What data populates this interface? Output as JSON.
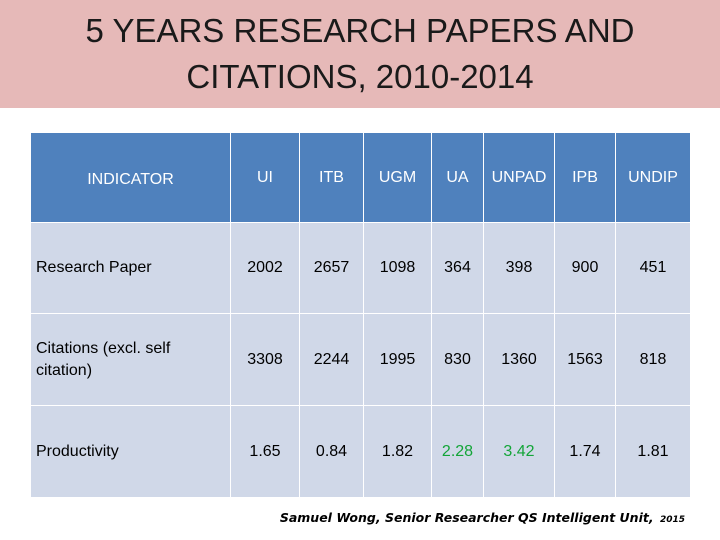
{
  "title": {
    "line1": "5 YEARS RESEARCH PAPERS AND",
    "line2": "CITATIONS, 2010-2014"
  },
  "table": {
    "headers": [
      "INDICATOR",
      "UI",
      "ITB",
      "UGM",
      "UA",
      "UNPAD",
      "IPB",
      "UNDIP"
    ],
    "rows": [
      {
        "label": "Research Paper",
        "values": [
          "2002",
          "2657",
          "1098",
          "364",
          "398",
          "900",
          "451"
        ]
      },
      {
        "label": "Citations (excl. self citation)",
        "values": [
          "3308",
          "2244",
          "1995",
          "830",
          "1360",
          "1563",
          "818"
        ]
      },
      {
        "label": "Productivity",
        "values": [
          "1.65",
          "0.84",
          "1.82",
          "2.28",
          "3.42",
          "1.74",
          "1.81"
        ]
      }
    ],
    "header_color": "#4f81bd",
    "cell_color": "#d0d8e8",
    "highlight_color": "#13a538"
  },
  "credit": {
    "text": "Samuel Wong, Senior Researcher QS Intelligent Unit,",
    "year": "2015"
  },
  "title_band_color": "#e6b9b8"
}
